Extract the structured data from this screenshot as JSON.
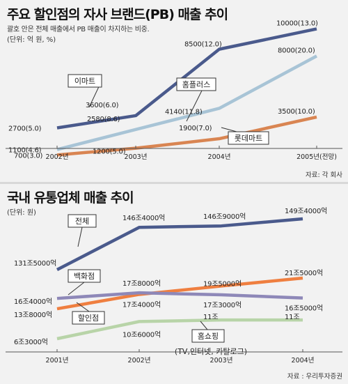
{
  "panel1": {
    "title": "주요 할인점의 자사 브랜드(PB) 매출 추이",
    "subtitle": "괄호 안은 전체 매출에서 PB 매출이 차지하는 비중.",
    "unit": "(단위: 억 원, %)",
    "source": "자료: 각 회사"
  },
  "panel2": {
    "title": "국내 유통업체 매출 추이",
    "unit": "(단위: 원)",
    "source": "자료 : 우리투자증권"
  },
  "chart_data": [
    {
      "type": "line",
      "title": "주요 할인점의 자사 브랜드(PB) 매출 추이",
      "categories": [
        "2002년",
        "2003년",
        "2004년",
        "2005년(전망)"
      ],
      "ylim": [
        0,
        11000
      ],
      "grid": false,
      "colors": [
        "#4a5a8c",
        "#a8c4d6",
        "#d98552"
      ],
      "series": [
        {
          "name": "이마트",
          "values": [
            2700,
            3600,
            8500,
            10000
          ],
          "labels": [
            "2700(5.0)",
            "3600(6.0)",
            "8500(12.0)",
            "10000(13.0)"
          ]
        },
        {
          "name": "홈플러스",
          "values": [
            1100,
            2580,
            4140,
            8000
          ],
          "labels": [
            "1100(4.6)",
            "2580(8.6)",
            "4140(11.8)",
            "8000(20.0)"
          ]
        },
        {
          "name": "롯데마트",
          "values": [
            700,
            1200,
            1900,
            3500
          ],
          "labels": [
            "700(3.0)",
            "1200(5.0)",
            "1900(7.0)",
            "3500(10.0)"
          ]
        }
      ]
    },
    {
      "type": "line",
      "title": "국내 유통업체 매출 추이",
      "categories": [
        "2001년",
        "2002년",
        "2003년",
        "2004년"
      ],
      "grid": false,
      "colors": [
        "#4a5a8c",
        "#ef7f40",
        "#8e88b8",
        "#b8d4a8"
      ],
      "series": [
        {
          "name": "전체",
          "values": [
            1315000,
            1464000,
            1469000,
            1494000
          ],
          "labels": [
            "131조5000억",
            "146조4000억",
            "146조9000억",
            "149조4000억"
          ]
        },
        {
          "name": "할인점",
          "values": [
            138000,
            174000,
            195000,
            215000
          ],
          "labels": [
            "13조8000억",
            "17조4000억",
            "19조5000억",
            "21조5000억"
          ]
        },
        {
          "name": "백화점",
          "values": [
            164000,
            178000,
            173000,
            165000
          ],
          "labels": [
            "16조4000억",
            "17조8000억",
            "17조3000억",
            "16조5000억"
          ]
        },
        {
          "name": "홈쇼핑",
          "sublabel": "(TV,인터넷, 카탈로그)",
          "values": [
            63000,
            106000,
            110000,
            110000
          ],
          "labels": [
            "6조3000억",
            "10조6000억",
            "11조",
            "11조"
          ]
        }
      ]
    }
  ]
}
